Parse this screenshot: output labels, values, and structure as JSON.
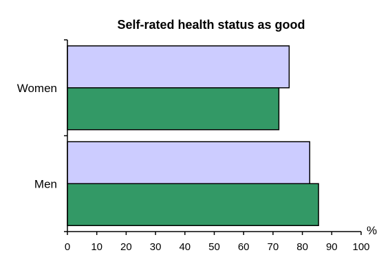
{
  "chart_data": {
    "type": "bar",
    "orientation": "horizontal",
    "title": "Self-rated health status as good",
    "xlabel": "",
    "ylabel": "",
    "unit_label": "%",
    "xlim": [
      0,
      100
    ],
    "x_ticks": [
      0,
      10,
      20,
      30,
      40,
      50,
      60,
      70,
      80,
      90,
      100
    ],
    "categories": [
      "Women",
      "Men"
    ],
    "series": [
      {
        "values": [
          75.5,
          82.5
        ],
        "color": "#ccccff"
      },
      {
        "values": [
          72.0,
          85.5
        ],
        "color": "#339966"
      }
    ],
    "grid": false,
    "legend": "none"
  }
}
